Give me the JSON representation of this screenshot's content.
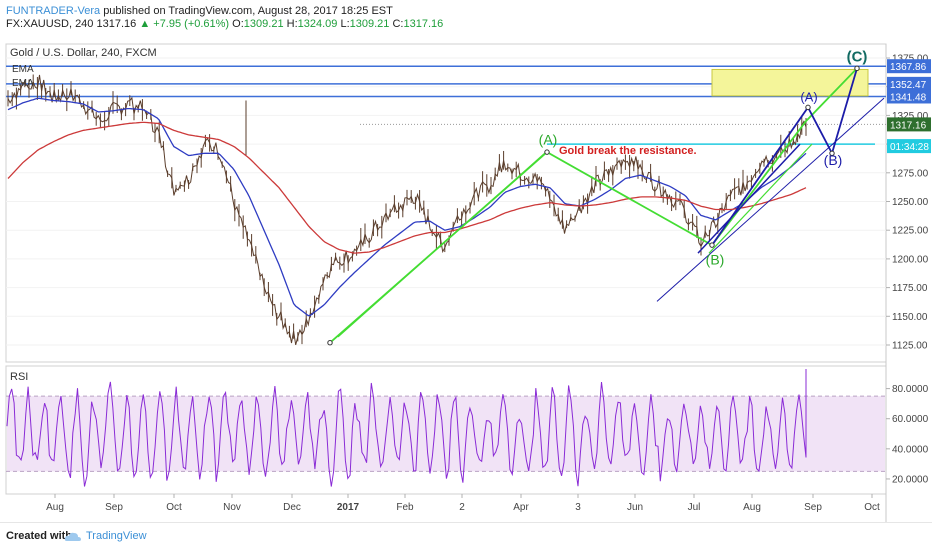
{
  "header": {
    "author": "FUNTRADER-Vera",
    "published": "published on TradingView.com, August 28, 2017 18:25 EST",
    "symbol": "FX:XAUUSD, 240",
    "last": "1317.16",
    "change": "+7.95 (+0.61%)",
    "open_label": "O:",
    "open": "1309.21",
    "high_label": "H:",
    "high": "1324.09",
    "low_label": "L:",
    "low": "1309.21",
    "close_label": "C:",
    "close": "1317.16"
  },
  "footer": {
    "created_with": "Created with",
    "brand": "TradingView"
  },
  "colors": {
    "price": "#5a3d2b",
    "ema_fast": "#2e3cc2",
    "ema_slow": "#cc3a3a",
    "wave_green": "#44dd33",
    "wave_blue": "#1c1ca8",
    "level": "#3d6fd8",
    "resistance": "#21cbe0",
    "target_zone": "#f4f59a",
    "rsi": "#8a2bd6",
    "rsi_band": "#f1e3f6"
  },
  "chart_data": [
    {
      "type": "line",
      "title": "Gold / U.S. Dollar, 240, FXCM",
      "legend": [
        "EMA",
        "EMA"
      ],
      "x_ticks": [
        "Aug",
        "Sep",
        "Oct",
        "Nov",
        "Dec",
        "2017",
        "Feb",
        "2",
        "Apr",
        "3",
        "Jun",
        "Jul",
        "Aug",
        "Sep",
        "Oct"
      ],
      "ylim": [
        1100,
        1380
      ],
      "y_ticks": [
        1125,
        1150,
        1175,
        1200,
        1225,
        1250,
        1275,
        1300,
        1325,
        1350,
        1375
      ],
      "series": [
        {
          "values": [
            1340,
            1350,
            1355,
            1340,
            1345,
            1335,
            1320,
            1330,
            1335,
            1330,
            1310,
            1260,
            1270,
            1300,
            1295,
            1250,
            1215,
            1175,
            1150,
            1130,
            1145,
            1185,
            1200,
            1205,
            1220,
            1235,
            1245,
            1255,
            1230,
            1210,
            1240,
            1255,
            1265,
            1285,
            1275,
            1270,
            1255,
            1225,
            1245,
            1265,
            1275,
            1290,
            1280,
            1265,
            1255,
            1240,
            1215,
            1230,
            1255,
            1265,
            1285,
            1290,
            1300,
            1317
          ]
        },
        {
          "values": [
            1330,
            1336,
            1340,
            1338,
            1337,
            1335,
            1328,
            1329,
            1331,
            1330,
            1322,
            1298,
            1290,
            1292,
            1292,
            1278,
            1255,
            1225,
            1195,
            1160,
            1150,
            1160,
            1175,
            1188,
            1200,
            1212,
            1222,
            1232,
            1233,
            1225,
            1228,
            1236,
            1245,
            1258,
            1263,
            1265,
            1262,
            1248,
            1246,
            1252,
            1260,
            1270,
            1273,
            1268,
            1263,
            1255,
            1238,
            1234,
            1242,
            1250,
            1262,
            1270,
            1280,
            1292
          ]
        },
        {
          "values": [
            1270,
            1284,
            1295,
            1302,
            1308,
            1312,
            1314,
            1316,
            1318,
            1319,
            1318,
            1312,
            1308,
            1306,
            1304,
            1298,
            1288,
            1275,
            1262,
            1245,
            1228,
            1215,
            1208,
            1205,
            1206,
            1210,
            1215,
            1220,
            1223,
            1223,
            1226,
            1230,
            1234,
            1240,
            1244,
            1247,
            1249,
            1247,
            1246,
            1247,
            1249,
            1252,
            1254,
            1254,
            1253,
            1251,
            1246,
            1243,
            1243,
            1245,
            1248,
            1252,
            1256,
            1262
          ]
        }
      ],
      "price_labels": [
        "1367.86",
        "1352.47",
        "1341.48",
        "1317.16",
        "01:34:28"
      ],
      "annotations": [
        "(A)",
        "(B)",
        "Gold break the resistance.",
        "(A)",
        "(B)",
        "(C)"
      ]
    },
    {
      "type": "line",
      "title": "RSI",
      "ylim": [
        10,
        95
      ],
      "y_ticks": [
        20,
        40,
        60,
        80
      ],
      "y_tick_labels": [
        "20.0000",
        "40.0000",
        "60.0000",
        "80.0000"
      ],
      "band": [
        25,
        75
      ]
    }
  ]
}
